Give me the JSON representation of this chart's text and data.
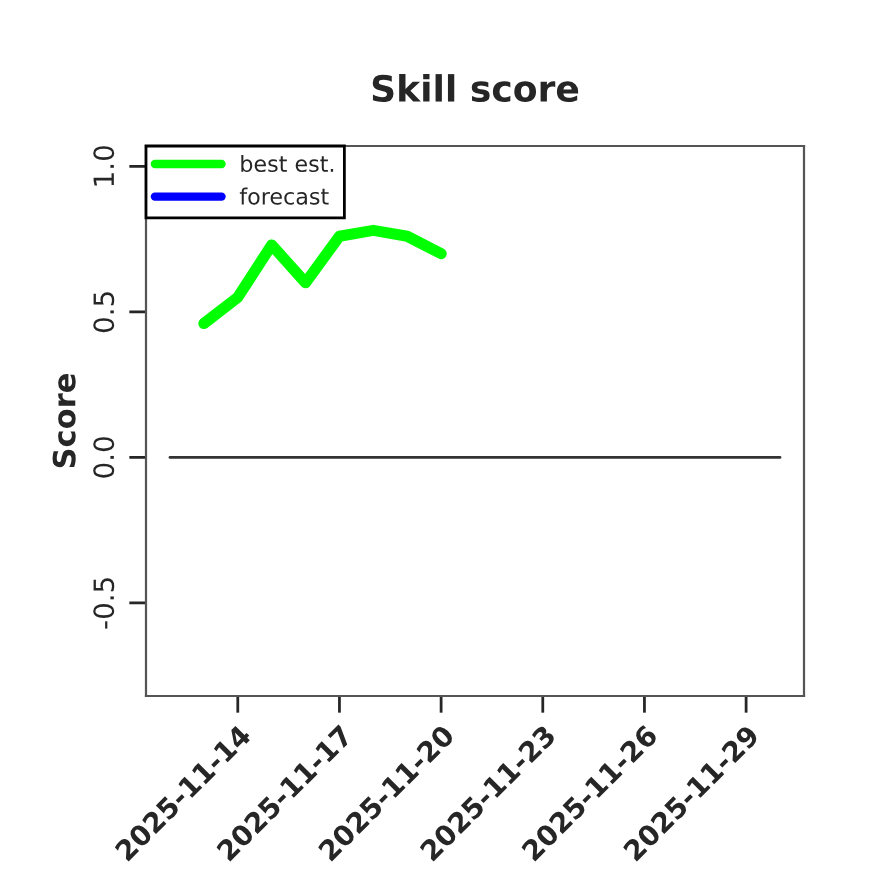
{
  "chart_data": {
    "type": "line",
    "title": "Skill score",
    "ylabel": "Score",
    "series": [
      {
        "name": "best est.",
        "color": "#00ff00",
        "x": [
          "2025-11-13",
          "2025-11-14",
          "2025-11-15",
          "2025-11-16",
          "2025-11-17",
          "2025-11-18",
          "2025-11-19",
          "2025-11-20"
        ],
        "values": [
          0.46,
          0.55,
          0.73,
          0.6,
          0.76,
          0.78,
          0.76,
          0.7
        ]
      },
      {
        "name": "forecast",
        "color": "#0000ff"
      },
      {
        "color": "#333333",
        "x": [
          "2025-11-12",
          "2025-11-30"
        ],
        "values": [
          0,
          0
        ]
      }
    ],
    "xlim": [
      "2025-11-11T07:00",
      "2025-11-30T17:00"
    ],
    "xticks": [
      {
        "value": "2025-11-14",
        "label": "2025-11-14"
      },
      {
        "value": "2025-11-17",
        "label": "2025-11-17"
      },
      {
        "value": "2025-11-20",
        "label": "2025-11-20"
      },
      {
        "value": "2025-11-23",
        "label": "2025-11-23"
      },
      {
        "value": "2025-11-26",
        "label": "2025-11-26"
      },
      {
        "value": "2025-11-29",
        "label": "2025-11-29"
      }
    ],
    "ylim": [
      -0.82,
      1.07
    ],
    "yticks": [
      {
        "value": -0.5,
        "label": "-0.5"
      },
      {
        "value": 0,
        "label": "0.0"
      },
      {
        "value": 0.5,
        "label": "0.5"
      },
      {
        "value": 1.0,
        "label": "1.0"
      }
    ],
    "legend": "top left",
    "grid": false
  }
}
